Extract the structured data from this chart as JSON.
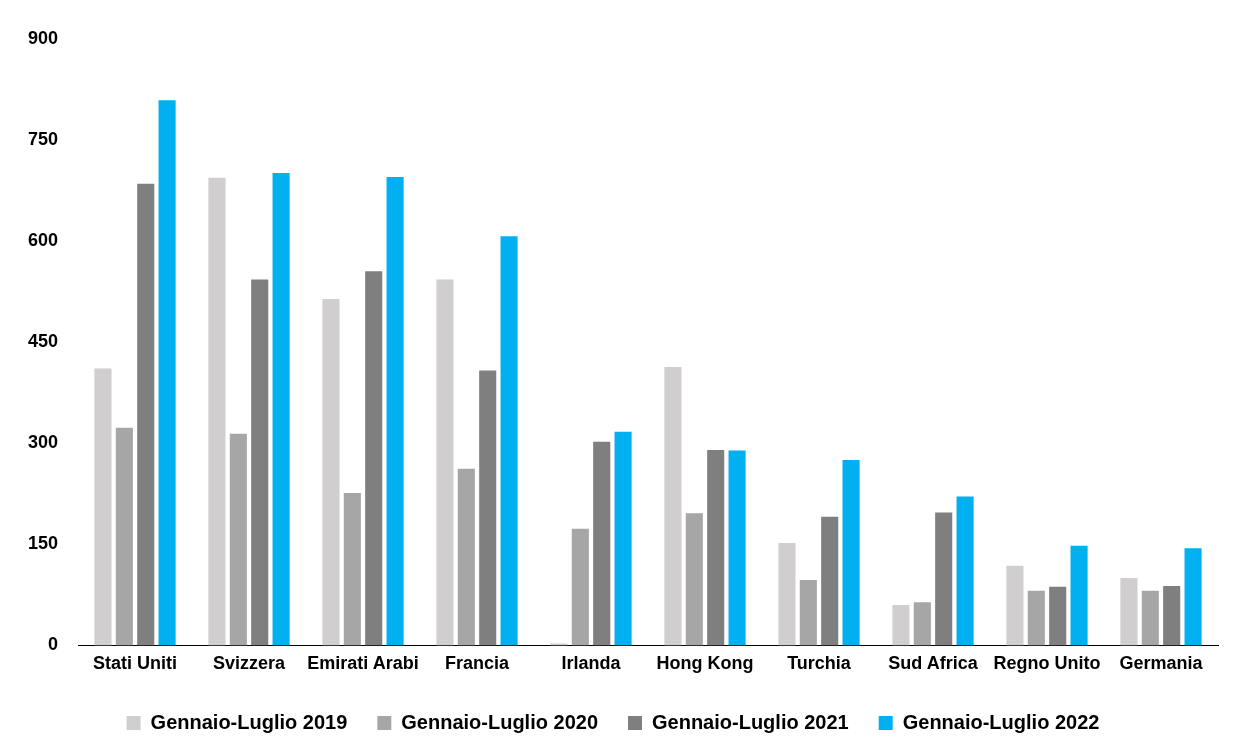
{
  "chart_data": {
    "type": "bar",
    "categories": [
      "Stati Uniti",
      "Svizzera",
      "Emirati Arabi",
      "Francia",
      "Irlanda",
      "Hong Kong",
      "Turchia",
      "Sud Africa",
      "Regno Unito",
      "Germania"
    ],
    "series": [
      {
        "name": "Gennaio-Luglio 2019",
        "color": "#d0cece",
        "values": [
          411,
          694,
          514,
          543,
          3,
          413,
          152,
          60,
          118,
          100
        ]
      },
      {
        "name": "Gennaio-Luglio 2020",
        "color": "#a6a6a6",
        "values": [
          323,
          314,
          226,
          262,
          173,
          196,
          97,
          64,
          81,
          81
        ]
      },
      {
        "name": "Gennaio-Luglio 2021",
        "color": "#7f7f7f",
        "values": [
          685,
          543,
          555,
          408,
          302,
          290,
          191,
          197,
          87,
          88
        ]
      },
      {
        "name": "Gennaio-Luglio 2022",
        "color": "#00b0f0",
        "values": [
          809,
          701,
          695,
          607,
          317,
          289,
          275,
          221,
          148,
          144
        ]
      }
    ],
    "ylim": [
      0,
      900
    ],
    "yticks": [
      0,
      150,
      300,
      450,
      600,
      750,
      900
    ],
    "grid": false,
    "legend": "bottom"
  }
}
